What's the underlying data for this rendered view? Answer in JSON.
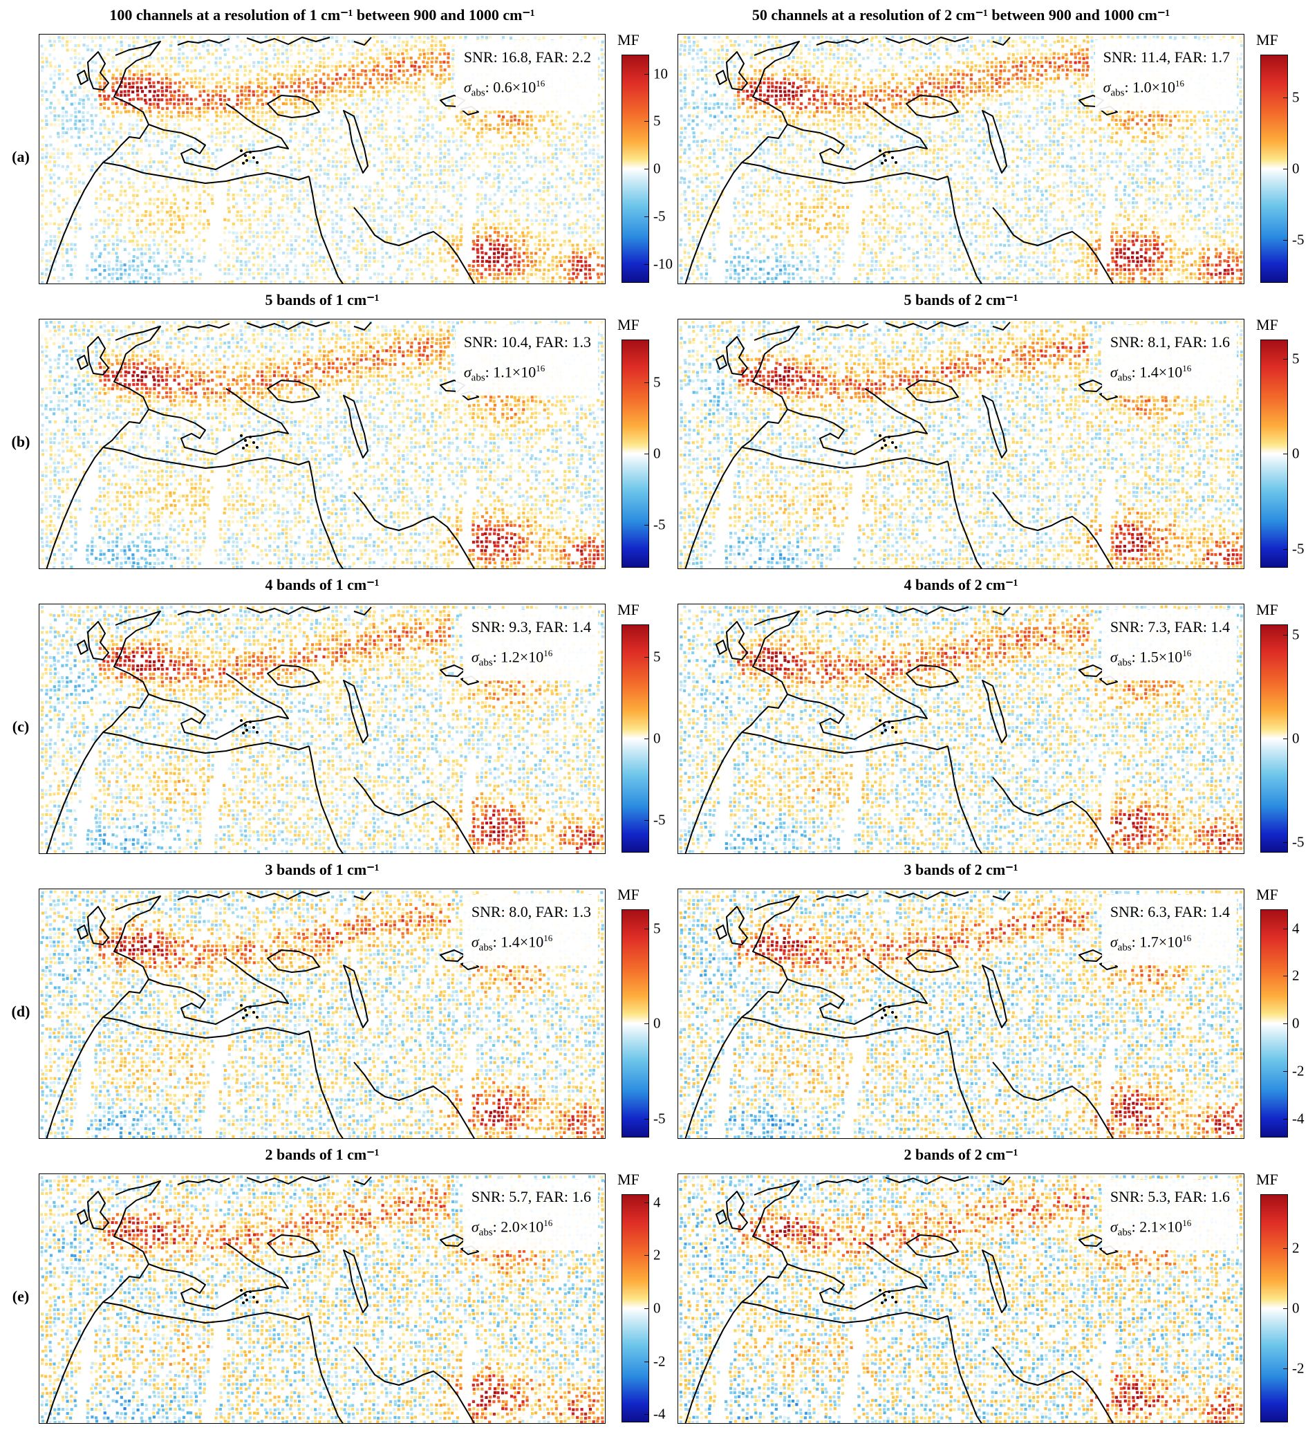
{
  "rows": [
    "(a)",
    "(b)",
    "(c)",
    "(d)",
    "(e)"
  ],
  "panels": [
    {
      "title": "100 channels at a resolution of 1 cm⁻¹ between 900 and 1000 cm⁻¹",
      "snr": "SNR: 16.8, FAR: 2.2",
      "sigma": ": 0.6×10",
      "colorbar": {
        "label": "MF",
        "max": 12,
        "ticks": [
          10,
          5,
          0,
          -5,
          -10
        ]
      }
    },
    {
      "title": "50 channels at a resolution of 2 cm⁻¹ between 900 and 1000 cm⁻¹",
      "snr": "SNR: 11.4, FAR: 1.7",
      "sigma": ": 1.0×10",
      "colorbar": {
        "label": "MF",
        "max": 8,
        "ticks": [
          5,
          0,
          -5
        ]
      }
    },
    {
      "title": "5 bands of 1 cm⁻¹",
      "snr": "SNR: 10.4, FAR: 1.3",
      "sigma": ": 1.1×10",
      "colorbar": {
        "label": "MF",
        "max": 8,
        "ticks": [
          5,
          0,
          -5
        ]
      }
    },
    {
      "title": "5 bands of 2 cm⁻¹",
      "snr": "SNR: 8.1, FAR: 1.6",
      "sigma": ": 1.4×10",
      "colorbar": {
        "label": "MF",
        "max": 6,
        "ticks": [
          5,
          0,
          -5
        ]
      }
    },
    {
      "title": "4 bands of 1 cm⁻¹",
      "snr": "SNR: 9.3, FAR: 1.4",
      "sigma": ": 1.2×10",
      "colorbar": {
        "label": "MF",
        "max": 7,
        "ticks": [
          5,
          0,
          -5
        ]
      }
    },
    {
      "title": "4 bands of 2 cm⁻¹",
      "snr": "SNR: 7.3, FAR: 1.4",
      "sigma": ": 1.5×10",
      "colorbar": {
        "label": "MF",
        "max": 5.5,
        "ticks": [
          5,
          0,
          -5
        ]
      }
    },
    {
      "title": "3 bands of 1 cm⁻¹",
      "snr": "SNR: 8.0, FAR: 1.3",
      "sigma": ": 1.4×10",
      "colorbar": {
        "label": "MF",
        "max": 6,
        "ticks": [
          5,
          0,
          -5
        ]
      }
    },
    {
      "title": "3 bands of 2 cm⁻¹",
      "snr": "SNR: 6.3, FAR: 1.4",
      "sigma": ": 1.7×10",
      "colorbar": {
        "label": "MF",
        "max": 4.8,
        "ticks": [
          4,
          2,
          0,
          -2,
          -4
        ]
      }
    },
    {
      "title": "2 bands of 1 cm⁻¹",
      "snr": "SNR: 5.7, FAR: 1.6",
      "sigma": ": 2.0×10",
      "colorbar": {
        "label": "MF",
        "max": 4.3,
        "ticks": [
          4,
          2,
          0,
          -2,
          -4
        ]
      }
    },
    {
      "title": "2 bands of 2 cm⁻¹",
      "snr": "SNR: 5.3, FAR: 1.6",
      "sigma": ": 2.1×10",
      "colorbar": {
        "label": "MF",
        "max": 3.8,
        "ticks": [
          2,
          0,
          -2
        ]
      }
    }
  ],
  "sigma_label": "σ",
  "sigma_sub": "abs",
  "sigma_exp": "16",
  "colors": {
    "high": "#a50f15",
    "mid_high": "#fdae3d",
    "zero": "#ffffff",
    "mid_low": "#6ec6ea",
    "low": "#0c0e8c",
    "coast": "#000000"
  }
}
